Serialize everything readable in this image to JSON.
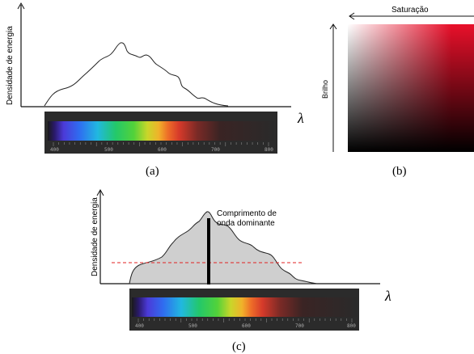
{
  "panel_a": {
    "ylabel": "Densidade de energia",
    "xlabel": "λ",
    "caption": "(a)",
    "ticks": [
      "400",
      "500",
      "600",
      "700",
      "800"
    ]
  },
  "panel_b": {
    "top_label": "Saturação",
    "side_label": "Brilho",
    "caption": "(b)",
    "hue_color": "#e8102a"
  },
  "panel_c": {
    "ylabel": "Densidade de energia",
    "xlabel": "λ",
    "caption": "(c)",
    "annotation_line1": "Comprimento de",
    "annotation_line2": "onda dominante",
    "ticks": [
      "400",
      "500",
      "600",
      "700",
      "800"
    ],
    "fill_color": "#cfcfcf",
    "threshold_color": "#e02020"
  }
}
